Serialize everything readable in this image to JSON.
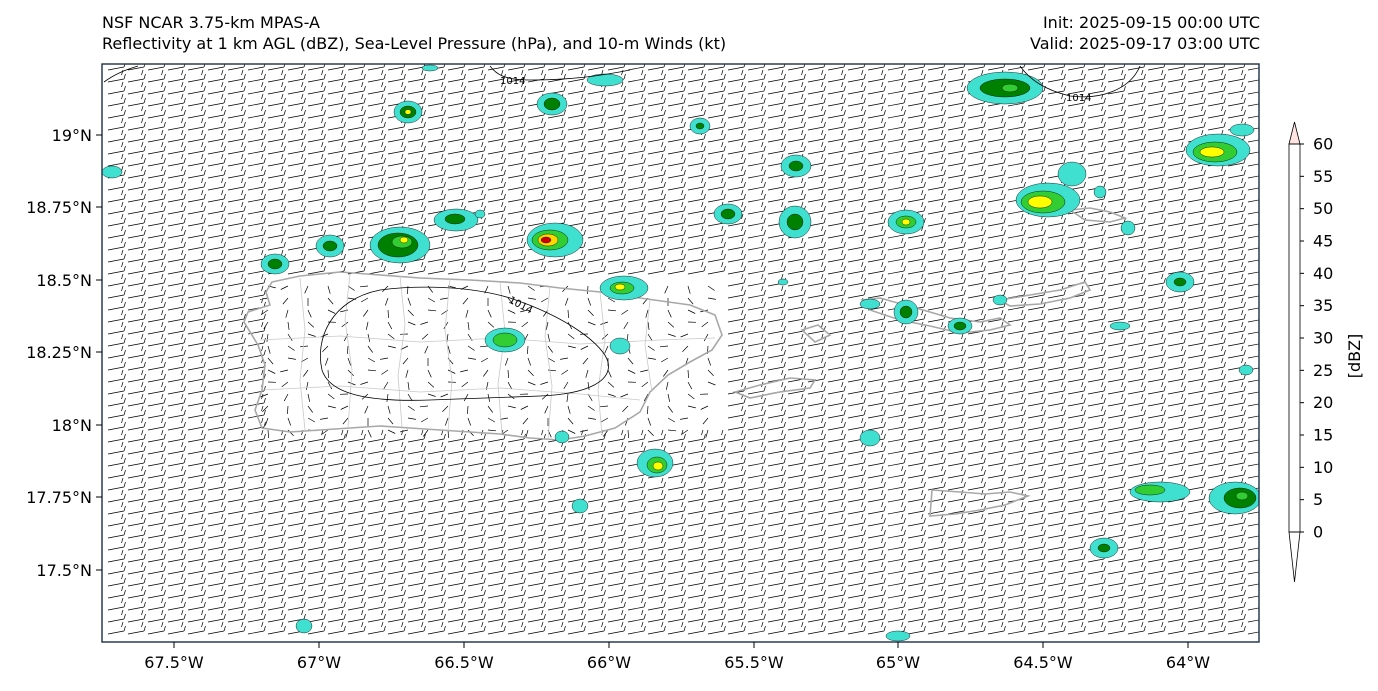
{
  "header": {
    "title_line1": "NSF NCAR 3.75-km MPAS-A",
    "title_line2": "Reflectivity at 1 km AGL (dBZ), Sea-Level Pressure (hPa), and 10-m Winds (kt)",
    "init": "Init: 2025-09-15 00:00 UTC",
    "valid": "Valid: 2025-09-17 03:00 UTC"
  },
  "map": {
    "lat_labels": [
      "19°N",
      "18.75°N",
      "18.5°N",
      "18.25°N",
      "18°N",
      "17.75°N",
      "17.5°N"
    ],
    "lon_labels": [
      "67.5°W",
      "67°W",
      "66.5°W",
      "66°W",
      "65.5°W",
      "65°W",
      "64.5°W",
      "64°W"
    ],
    "contour_labels": [
      "1014",
      "1014",
      "1014"
    ]
  },
  "colorbar": {
    "title": "[dBZ]",
    "ticks": [
      "0",
      "5",
      "10",
      "15",
      "20",
      "25",
      "30",
      "35",
      "40",
      "45",
      "50",
      "55",
      "60"
    ],
    "colors": [
      "#008080",
      "#00c0c0",
      "#40e0d0",
      "#008000",
      "#32cd32",
      "#ffff00",
      "#ffd700",
      "#ff8c00",
      "#cc0000",
      "#8b0000",
      "#ff00ff",
      "#ffe4e1"
    ]
  }
}
